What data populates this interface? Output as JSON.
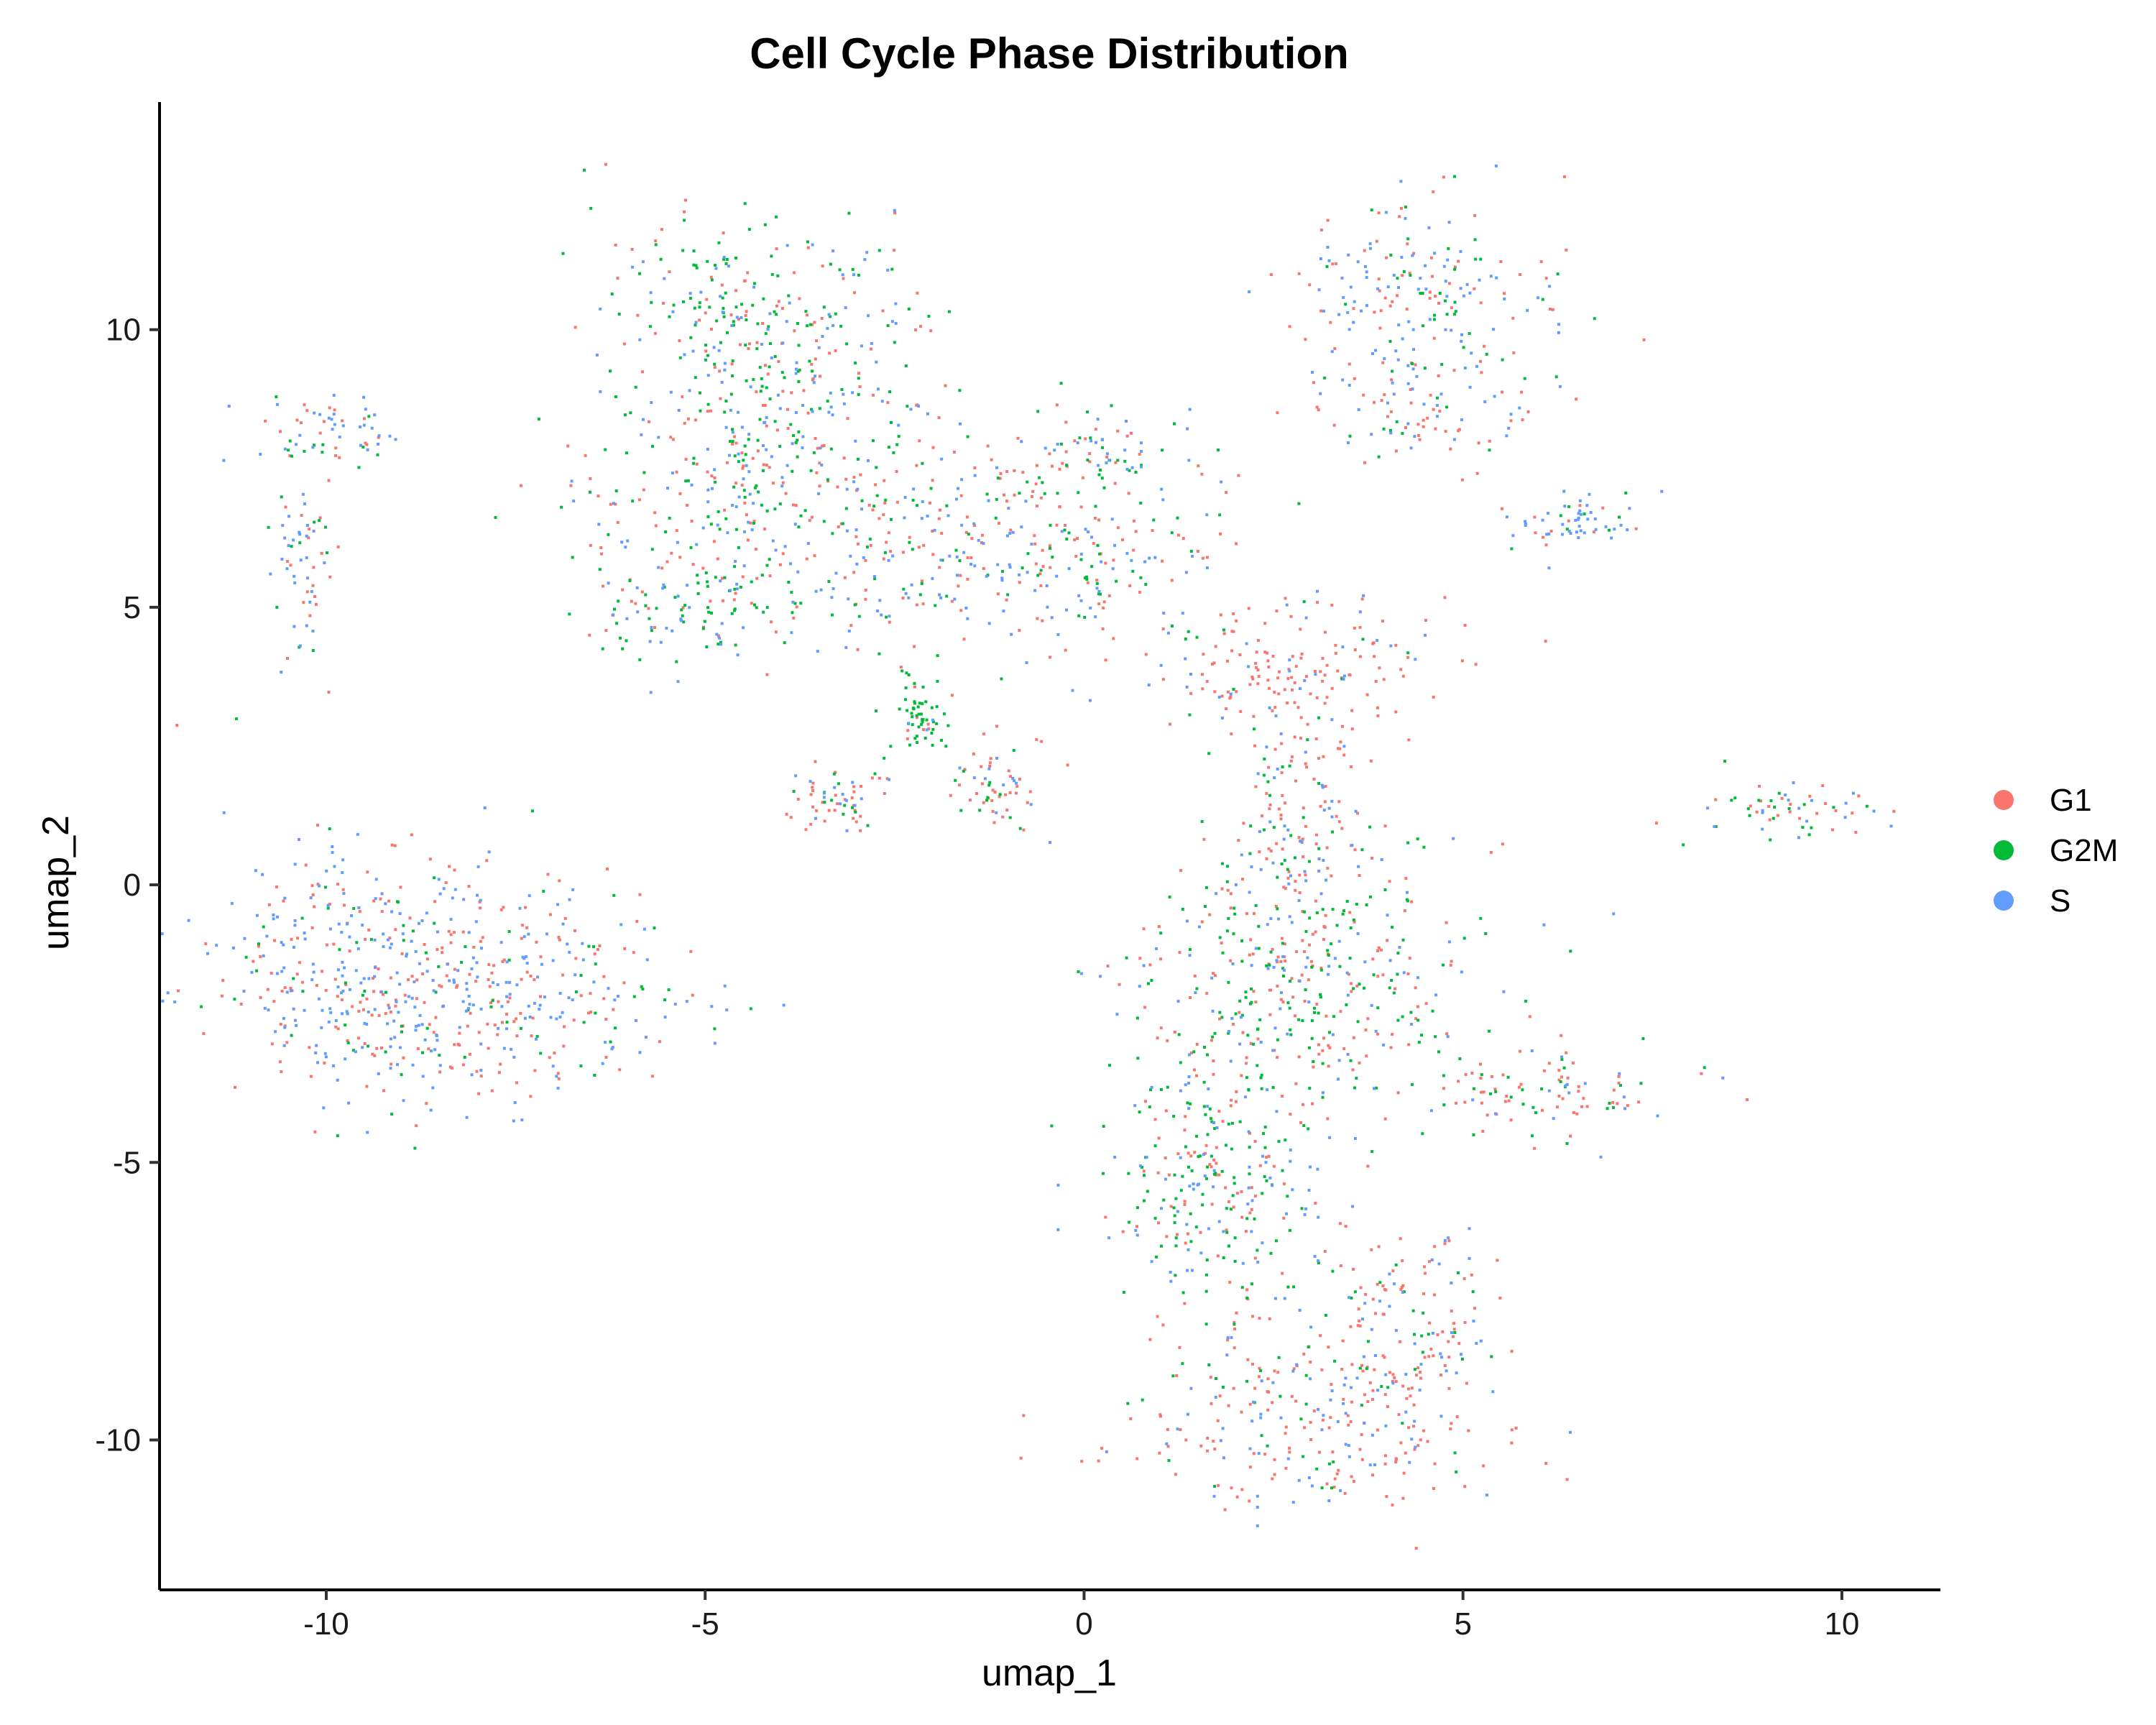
{
  "chart_data": {
    "type": "scatter",
    "title": "Cell Cycle Phase Distribution",
    "xlabel": "umap_1",
    "ylabel": "umap_2",
    "xlim": [
      -12.2,
      11.3
    ],
    "ylim": [
      -12.7,
      14.1
    ],
    "xticks": [
      -10,
      -5,
      0,
      5,
      10
    ],
    "yticks": [
      -10,
      -5,
      0,
      5,
      10
    ],
    "xtick_labels": [
      "-10",
      "-5",
      "0",
      "5",
      "10"
    ],
    "ytick_labels": [
      "-10",
      "-5",
      "0",
      "5",
      "10"
    ],
    "grid": false,
    "legend": {
      "placement": "right",
      "entries": [
        "G1",
        "G2M",
        "S"
      ]
    },
    "colors": {
      "G1": "#F8766D",
      "G2M": "#00BA38",
      "S": "#619CFF"
    },
    "series": [
      {
        "name": "G1"
      },
      {
        "name": "G2M"
      },
      {
        "name": "S"
      }
    ],
    "clusters": [
      {
        "center": [
          -9.5,
          -1.5
        ],
        "spread": [
          1.1,
          1.2
        ],
        "mix": [
          0.4,
          0.15,
          0.45
        ]
      },
      {
        "center": [
          -7.5,
          -2.0
        ],
        "spread": [
          1.2,
          0.9
        ],
        "mix": [
          0.4,
          0.15,
          0.45
        ]
      },
      {
        "center": [
          -10.0,
          8.2
        ],
        "spread": [
          0.5,
          0.35
        ],
        "mix": [
          0.3,
          0.15,
          0.55
        ]
      },
      {
        "center": [
          -10.3,
          5.8
        ],
        "spread": [
          0.2,
          0.9
        ],
        "mix": [
          0.3,
          0.2,
          0.5
        ]
      },
      {
        "center": [
          -4.2,
          10.3
        ],
        "spread": [
          1.0,
          0.9
        ],
        "mix": [
          0.3,
          0.45,
          0.25
        ]
      },
      {
        "center": [
          -4.2,
          7.5
        ],
        "spread": [
          1.2,
          1.2
        ],
        "mix": [
          0.35,
          0.35,
          0.3
        ]
      },
      {
        "center": [
          -5.2,
          5.0
        ],
        "spread": [
          0.8,
          0.5
        ],
        "mix": [
          0.3,
          0.35,
          0.35
        ]
      },
      {
        "center": [
          0.2,
          7.8
        ],
        "spread": [
          0.6,
          0.35
        ],
        "mix": [
          0.25,
          0.4,
          0.35
        ]
      },
      {
        "center": [
          -1.0,
          6.0
        ],
        "spread": [
          1.4,
          0.9
        ],
        "mix": [
          0.4,
          0.3,
          0.3
        ]
      },
      {
        "center": [
          -2.2,
          3.0
        ],
        "spread": [
          0.2,
          0.3
        ],
        "mix": [
          0.1,
          0.85,
          0.05
        ]
      },
      {
        "center": [
          -3.3,
          1.5
        ],
        "spread": [
          0.3,
          0.3
        ],
        "mix": [
          0.55,
          0.2,
          0.25
        ]
      },
      {
        "center": [
          4.5,
          10.8
        ],
        "spread": [
          0.9,
          0.7
        ],
        "mix": [
          0.35,
          0.2,
          0.45
        ]
      },
      {
        "center": [
          4.5,
          8.8
        ],
        "spread": [
          0.7,
          0.6
        ],
        "mix": [
          0.45,
          0.2,
          0.35
        ]
      },
      {
        "center": [
          6.5,
          6.5
        ],
        "spread": [
          0.4,
          0.3
        ],
        "mix": [
          0.3,
          0.1,
          0.6
        ]
      },
      {
        "center": [
          2.8,
          4.0
        ],
        "spread": [
          1.0,
          0.6
        ],
        "mix": [
          0.8,
          0.05,
          0.15
        ]
      },
      {
        "center": [
          2.8,
          1.5
        ],
        "spread": [
          0.5,
          1.0
        ],
        "mix": [
          0.55,
          0.2,
          0.25
        ]
      },
      {
        "center": [
          2.9,
          -1.5
        ],
        "spread": [
          1.2,
          1.1
        ],
        "mix": [
          0.35,
          0.4,
          0.25
        ]
      },
      {
        "center": [
          1.8,
          -5.0
        ],
        "spread": [
          0.8,
          1.6
        ],
        "mix": [
          0.3,
          0.45,
          0.25
        ]
      },
      {
        "center": [
          3.0,
          -9.8
        ],
        "spread": [
          1.2,
          0.8
        ],
        "mix": [
          0.6,
          0.15,
          0.25
        ]
      },
      {
        "center": [
          4.2,
          -7.8
        ],
        "spread": [
          0.6,
          0.8
        ],
        "mix": [
          0.5,
          0.2,
          0.3
        ]
      },
      {
        "center": [
          6.3,
          -3.8
        ],
        "spread": [
          1.0,
          0.4
        ],
        "mix": [
          0.5,
          0.3,
          0.2
        ]
      },
      {
        "center": [
          9.3,
          1.4
        ],
        "spread": [
          0.7,
          0.25
        ],
        "mix": [
          0.4,
          0.3,
          0.3
        ]
      },
      {
        "center": [
          -1.2,
          1.8
        ],
        "spread": [
          0.3,
          0.4
        ],
        "mix": [
          0.6,
          0.2,
          0.2
        ]
      }
    ]
  }
}
